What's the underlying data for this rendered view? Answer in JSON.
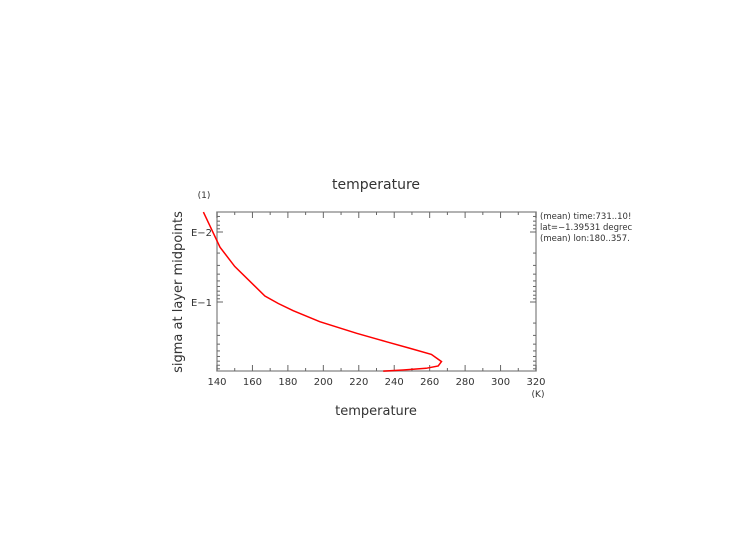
{
  "chart_data": {
    "type": "line",
    "title": "temperature",
    "xlabel": "temperature",
    "xunit": "(K)",
    "ylabel": "sigma at layer midpoints",
    "yunit": "(1)",
    "xlim": [
      140,
      320
    ],
    "ylim": [
      0.97,
      0.0052
    ],
    "yscale": "log",
    "xticks": [
      140,
      160,
      180,
      200,
      220,
      240,
      260,
      280,
      300,
      320
    ],
    "xtick_labels": [
      "140",
      "160",
      "180",
      "200",
      "220",
      "240",
      "260",
      "280",
      "300",
      "320"
    ],
    "yticks": [
      0.01,
      0.1
    ],
    "ytick_labels": [
      "E−2",
      "E−1"
    ],
    "grid": false,
    "annotations": [
      "(mean) time:731..10!",
      "lat=−1.39531 degrec",
      "(mean) lon:180..357."
    ],
    "series": [
      {
        "name": "temperature",
        "color": "#ff0000",
        "x": [
          132.3,
          141.7,
          150.0,
          167.0,
          174.6,
          183.0,
          198.0,
          218.8,
          235.7,
          249.0,
          261.0,
          266.7,
          264.8,
          258.0,
          245.0,
          233.8
        ],
        "y": [
          0.0052,
          0.0165,
          0.031,
          0.082,
          0.105,
          0.133,
          0.191,
          0.28,
          0.37,
          0.46,
          0.56,
          0.71,
          0.82,
          0.885,
          0.935,
          0.97
        ]
      }
    ]
  }
}
